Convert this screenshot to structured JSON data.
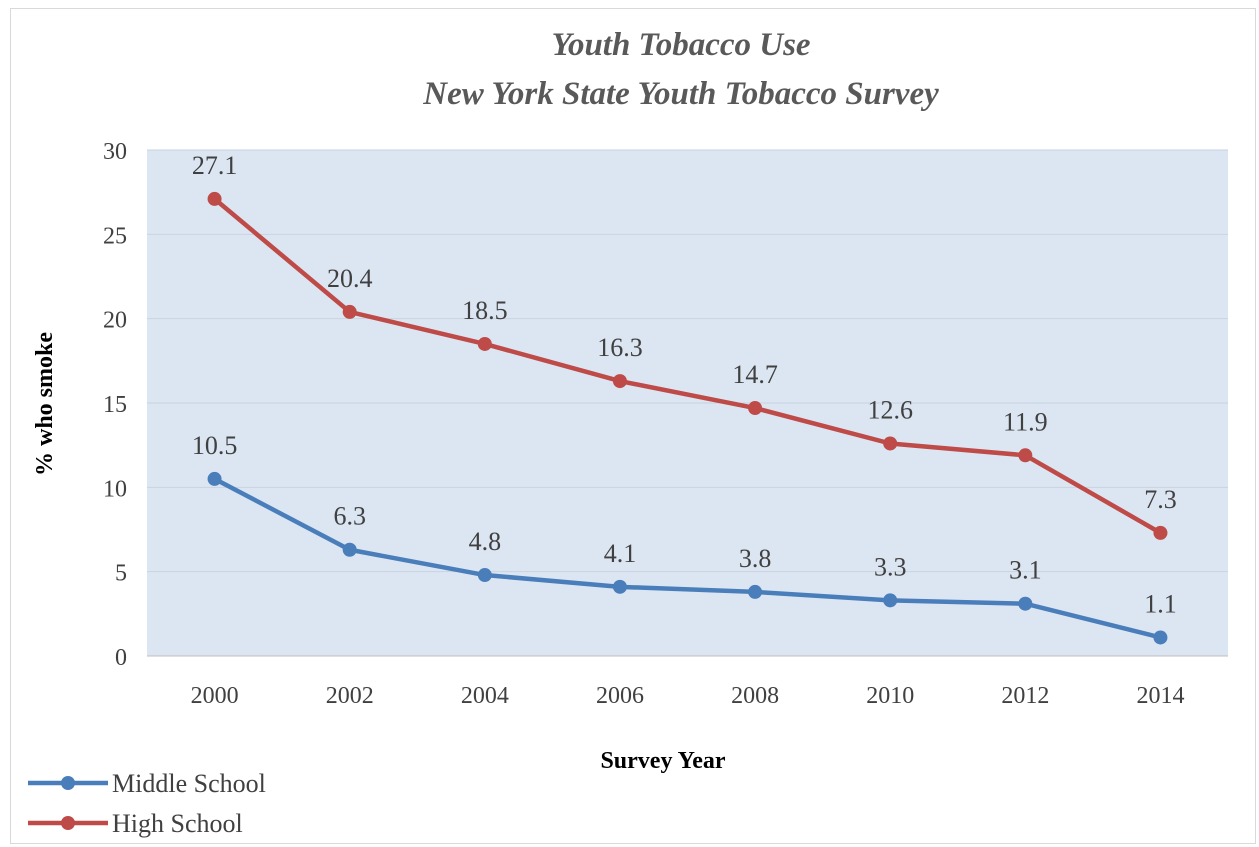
{
  "chart_data": {
    "type": "line",
    "title": "Youth Tobacco Use",
    "subtitle": "New York State Youth Tobacco Survey",
    "xlabel": "Survey Year",
    "ylabel": "% who smoke",
    "categories": [
      "2000",
      "2002",
      "2004",
      "2006",
      "2008",
      "2010",
      "2012",
      "2014"
    ],
    "ylim": [
      0,
      30
    ],
    "yticks": [
      "0",
      "5",
      "10",
      "15",
      "20",
      "25",
      "30"
    ],
    "grid": true,
    "legend_position": "bottom-left",
    "series": [
      {
        "name": "Middle School",
        "color": "#4a7ebb",
        "values": [
          10.5,
          6.3,
          4.8,
          4.1,
          3.8,
          3.3,
          3.1,
          1.1
        ],
        "labels": [
          "10.5",
          "6.3",
          "4.8",
          "4.1",
          "3.8",
          "3.3",
          "3.1",
          "1.1"
        ]
      },
      {
        "name": "High School",
        "color": "#be4b48",
        "values": [
          27.1,
          20.4,
          18.5,
          16.3,
          14.7,
          12.6,
          11.9,
          7.3
        ],
        "labels": [
          "27.1",
          "20.4",
          "18.5",
          "16.3",
          "14.7",
          "12.6",
          "11.9",
          "7.3"
        ]
      }
    ],
    "plot_background": "#dce6f2",
    "gridline_color": "#c9d3e0"
  }
}
